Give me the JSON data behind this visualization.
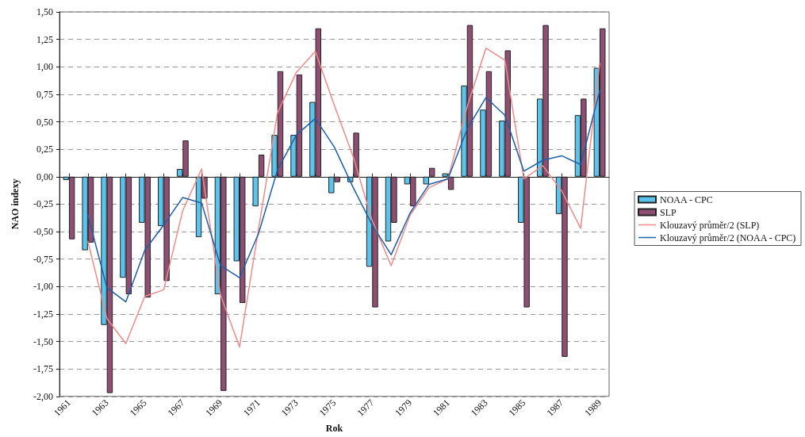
{
  "chart_data": {
    "type": "bar",
    "xlabel": "Rok",
    "ylabel": "NAO indexy",
    "categories": [
      "1961",
      null,
      "1963",
      null,
      "1965",
      null,
      "1967",
      null,
      "1969",
      null,
      "1971",
      null,
      "1973",
      null,
      "1975",
      null,
      "1977",
      null,
      "1979",
      null,
      "1981",
      null,
      "1983",
      null,
      "1985",
      null,
      "1987",
      null,
      "1989"
    ],
    "series": [
      {
        "name": "NOAA - CPC",
        "color": "#5bc4ec",
        "values": [
          -0.03,
          -0.67,
          -1.35,
          -0.92,
          -0.42,
          -0.45,
          0.07,
          -0.55,
          -1.07,
          -0.77,
          -0.27,
          0.38,
          0.38,
          0.68,
          -0.15,
          -0.05,
          -0.82,
          -0.59,
          -0.07,
          -0.07,
          0.03,
          0.83,
          0.61,
          0.51,
          -0.42,
          0.71,
          -0.34,
          0.56,
          0.99
        ]
      },
      {
        "name": "SLP",
        "color": "#8e4f72",
        "values": [
          -0.57,
          -0.6,
          -1.97,
          -1.07,
          -1.1,
          -0.95,
          0.33,
          -0.2,
          -1.95,
          -1.15,
          0.2,
          0.96,
          0.93,
          1.35,
          -0.05,
          0.4,
          -1.19,
          -0.42,
          -0.27,
          0.08,
          -0.12,
          1.38,
          0.96,
          1.15,
          -1.19,
          1.38,
          -1.64,
          0.71,
          1.35
        ]
      },
      {
        "name": "Klouzavý průměr/2 (SLP)",
        "type": "line",
        "color": "#f08a8a",
        "values": [
          null,
          -0.59,
          -1.29,
          -1.52,
          -1.09,
          -1.03,
          -0.31,
          0.07,
          -1.08,
          -1.55,
          -0.48,
          0.58,
          0.95,
          1.14,
          0.65,
          0.18,
          -0.4,
          -0.81,
          -0.35,
          -0.1,
          -0.02,
          0.63,
          1.17,
          1.06,
          -0.02,
          0.1,
          -0.13,
          -0.47,
          1.03
        ]
      },
      {
        "name": "Klouzavý průměr/2 (NOAA - CPC)",
        "type": "line",
        "color": "#1f5ea8",
        "values": [
          null,
          -0.35,
          -1.01,
          -1.14,
          -0.67,
          -0.44,
          -0.19,
          -0.24,
          -0.81,
          -0.92,
          -0.52,
          0.06,
          0.38,
          0.53,
          0.27,
          -0.1,
          -0.44,
          -0.71,
          -0.33,
          -0.07,
          -0.02,
          0.43,
          0.72,
          0.56,
          0.05,
          0.15,
          0.19,
          0.11,
          0.78
        ]
      }
    ],
    "ylim": [
      -2,
      1.5
    ],
    "yticks": [
      {
        "value": -2,
        "label": "-2,00"
      },
      {
        "value": -1.75,
        "label": "-1,75"
      },
      {
        "value": -1.5,
        "label": "-1,50"
      },
      {
        "value": -1.25,
        "label": "-1,25"
      },
      {
        "value": -1,
        "label": "-1,00"
      },
      {
        "value": -0.75,
        "label": "-0,75"
      },
      {
        "value": -0.5,
        "label": "-0,50"
      },
      {
        "value": -0.25,
        "label": "-0,25"
      },
      {
        "value": 0,
        "label": "0,00"
      },
      {
        "value": 0.25,
        "label": "0,25"
      },
      {
        "value": 0.5,
        "label": "0,50"
      },
      {
        "value": 0.75,
        "label": "0,75"
      },
      {
        "value": 1,
        "label": "1,00"
      },
      {
        "value": 1.25,
        "label": "1,25"
      },
      {
        "value": 1.5,
        "label": "1,50"
      }
    ],
    "grid": "y",
    "legend": "right",
    "marker": "none",
    "line_style": "solid"
  }
}
